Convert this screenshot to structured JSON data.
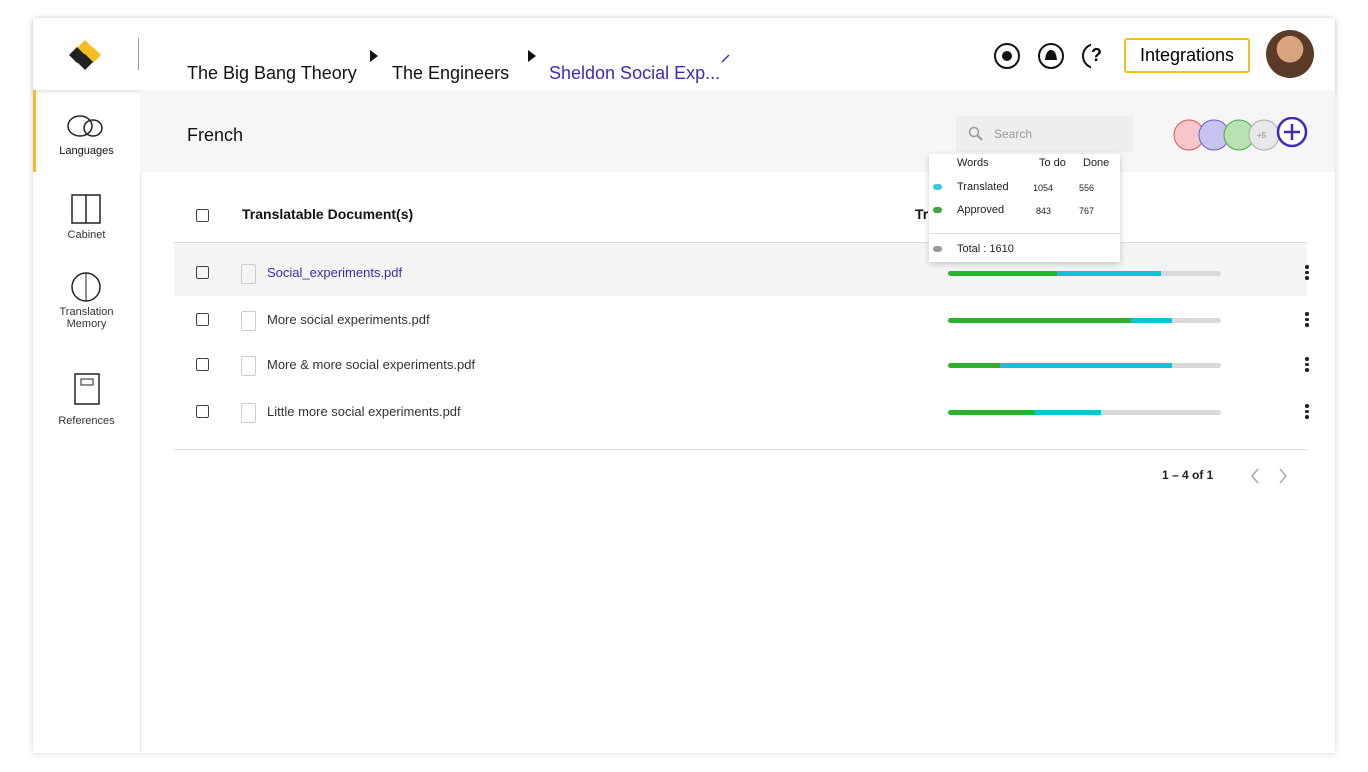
{
  "header": {
    "breadcrumb": [
      "The Big Bang Theory",
      "The Engineers",
      "Sheldon Social Exp..."
    ],
    "integrations": "Integrations"
  },
  "sidebar": [
    "Languages",
    "Cabinet",
    "Translation Memory",
    "References"
  ],
  "toolbar": {
    "title": "French",
    "search_placeholder": "Search",
    "more_members": "+5"
  },
  "table": {
    "columns": [
      "Translatable Document(s)",
      "Tr"
    ],
    "rows": [
      {
        "name": "Social_experiments.pdf",
        "approved": 40,
        "translated": 38
      },
      {
        "name": "More social experiments.pdf",
        "approved": 67,
        "translated": 15
      },
      {
        "name": "More & more social experiments.pdf",
        "approved": 19,
        "translated": 63
      },
      {
        "name": "Little more social experiments.pdf",
        "approved": 32,
        "translated": 24
      }
    ]
  },
  "popup": {
    "columns": [
      "Words",
      "To do",
      "Done"
    ],
    "rows": [
      {
        "label": "Translated",
        "todo": 1054,
        "done": 556
      },
      {
        "label": "Approved",
        "todo": 843,
        "done": 767
      }
    ],
    "total": "Total : 1610"
  },
  "pagination": "1 – 4 of 1"
}
